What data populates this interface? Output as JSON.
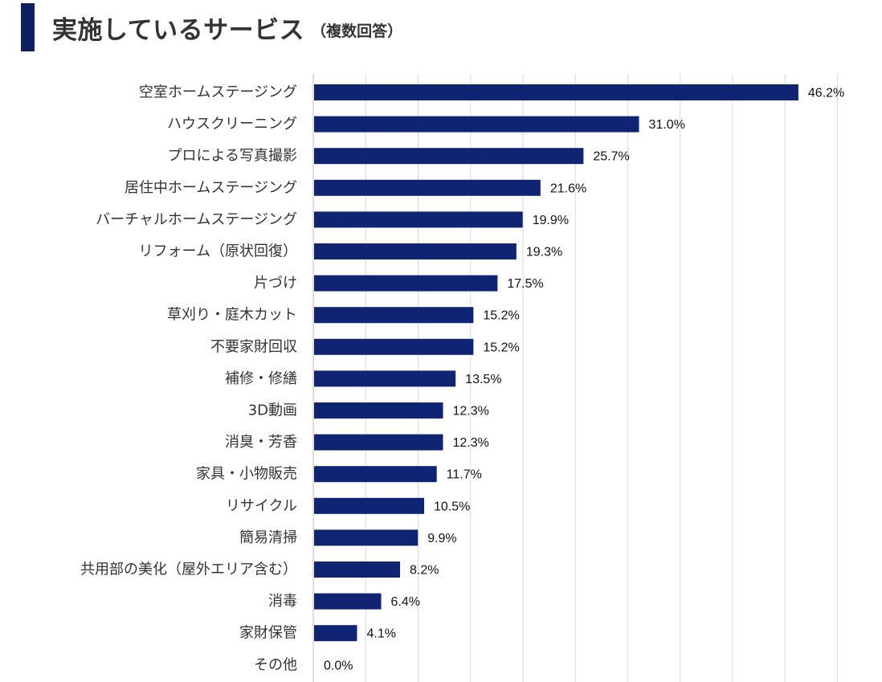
{
  "header": {
    "title": "実施しているサービス",
    "subtitle": "（複数回答）"
  },
  "colors": {
    "accent": "#0d1f5e",
    "bar": "#0f2573",
    "grid": "#d9d9d9"
  },
  "chart_data": {
    "type": "bar",
    "orientation": "horizontal",
    "categories": [
      "空室ホームステージング",
      "ハウスクリーニング",
      "プロによる写真撮影",
      "居住中ホームステージング",
      "バーチャルホームステージング",
      "リフォーム（原状回復）",
      "片づけ",
      "草刈り・庭木カット",
      "不要家財回収",
      "補修・修繕",
      "3D動画",
      "消臭・芳香",
      "家具・小物販売",
      "リサイクル",
      "簡易清掃",
      "共用部の美化（屋外エリア含む）",
      "消毒",
      "家財保管",
      "その他"
    ],
    "values": [
      46.2,
      31.0,
      25.7,
      21.6,
      19.9,
      19.3,
      17.5,
      15.2,
      15.2,
      13.5,
      12.3,
      12.3,
      11.7,
      10.5,
      9.9,
      8.2,
      6.4,
      4.1,
      0.0
    ],
    "value_labels": [
      "46.2%",
      "31.0%",
      "25.7%",
      "21.6%",
      "19.9%",
      "19.3%",
      "17.5%",
      "15.2%",
      "15.2%",
      "13.5%",
      "12.3%",
      "12.3%",
      "11.7%",
      "10.5%",
      "9.9%",
      "8.2%",
      "6.4%",
      "4.1%",
      "0.0%"
    ],
    "xlim": [
      0,
      50
    ],
    "grid_step": 5,
    "grid": true,
    "legend": "none",
    "title": "",
    "xlabel": "",
    "ylabel": ""
  }
}
